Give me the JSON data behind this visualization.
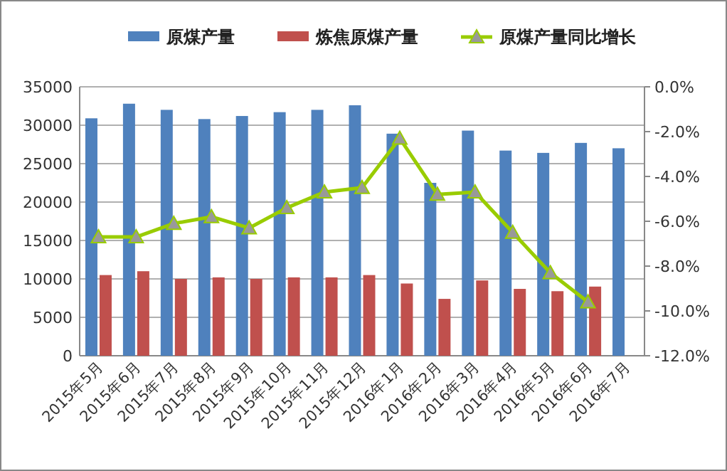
{
  "chart_data": {
    "type": "bar",
    "categories": [
      "2015年5月",
      "2015年6月",
      "2015年7月",
      "2015年8月",
      "2015年9月",
      "2015年10月",
      "2015年11月",
      "2015年12月",
      "2016年1月",
      "2016年2月",
      "2016年3月",
      "2016年4月",
      "2016年5月",
      "2016年6月",
      "2016年7月"
    ],
    "series": [
      {
        "name": "原煤产量",
        "color": "#4f81bd",
        "values": [
          30900,
          32800,
          32000,
          30800,
          31200,
          31700,
          32000,
          32600,
          28900,
          22500,
          29300,
          26700,
          26400,
          27700,
          27000
        ]
      },
      {
        "name": "炼焦原煤产量",
        "color": "#c0504d",
        "values": [
          10500,
          11000,
          10000,
          10200,
          10000,
          10200,
          10200,
          10500,
          9400,
          7400,
          9800,
          8700,
          8400,
          9000,
          null
        ]
      },
      {
        "name": "原煤产量同比增长",
        "type": "line",
        "axis": "y2",
        "color": "#99cc00",
        "marker": "triangle",
        "values": [
          -6.7,
          -6.7,
          -6.1,
          -5.8,
          -6.3,
          -5.4,
          -4.7,
          -4.5,
          -2.3,
          -4.8,
          -4.7,
          -6.5,
          -8.3,
          -9.6,
          null
        ]
      }
    ],
    "ylim": [
      0,
      35000
    ],
    "yticks": [
      0,
      5000,
      10000,
      15000,
      20000,
      25000,
      30000,
      35000
    ],
    "y2lim": [
      -12,
      0
    ],
    "y2ticks": [
      {
        "value": 0,
        "label": "0.0%"
      },
      {
        "value": -2,
        "label": "-2.0%"
      },
      {
        "value": -4,
        "label": "-4.0%"
      },
      {
        "value": -6,
        "label": "-6.0%"
      },
      {
        "value": -8,
        "label": "-8.0%"
      },
      {
        "value": -10,
        "label": "-10.0%"
      },
      {
        "value": -12,
        "label": "-12.0%"
      }
    ],
    "grid": "y",
    "legend": "top"
  }
}
